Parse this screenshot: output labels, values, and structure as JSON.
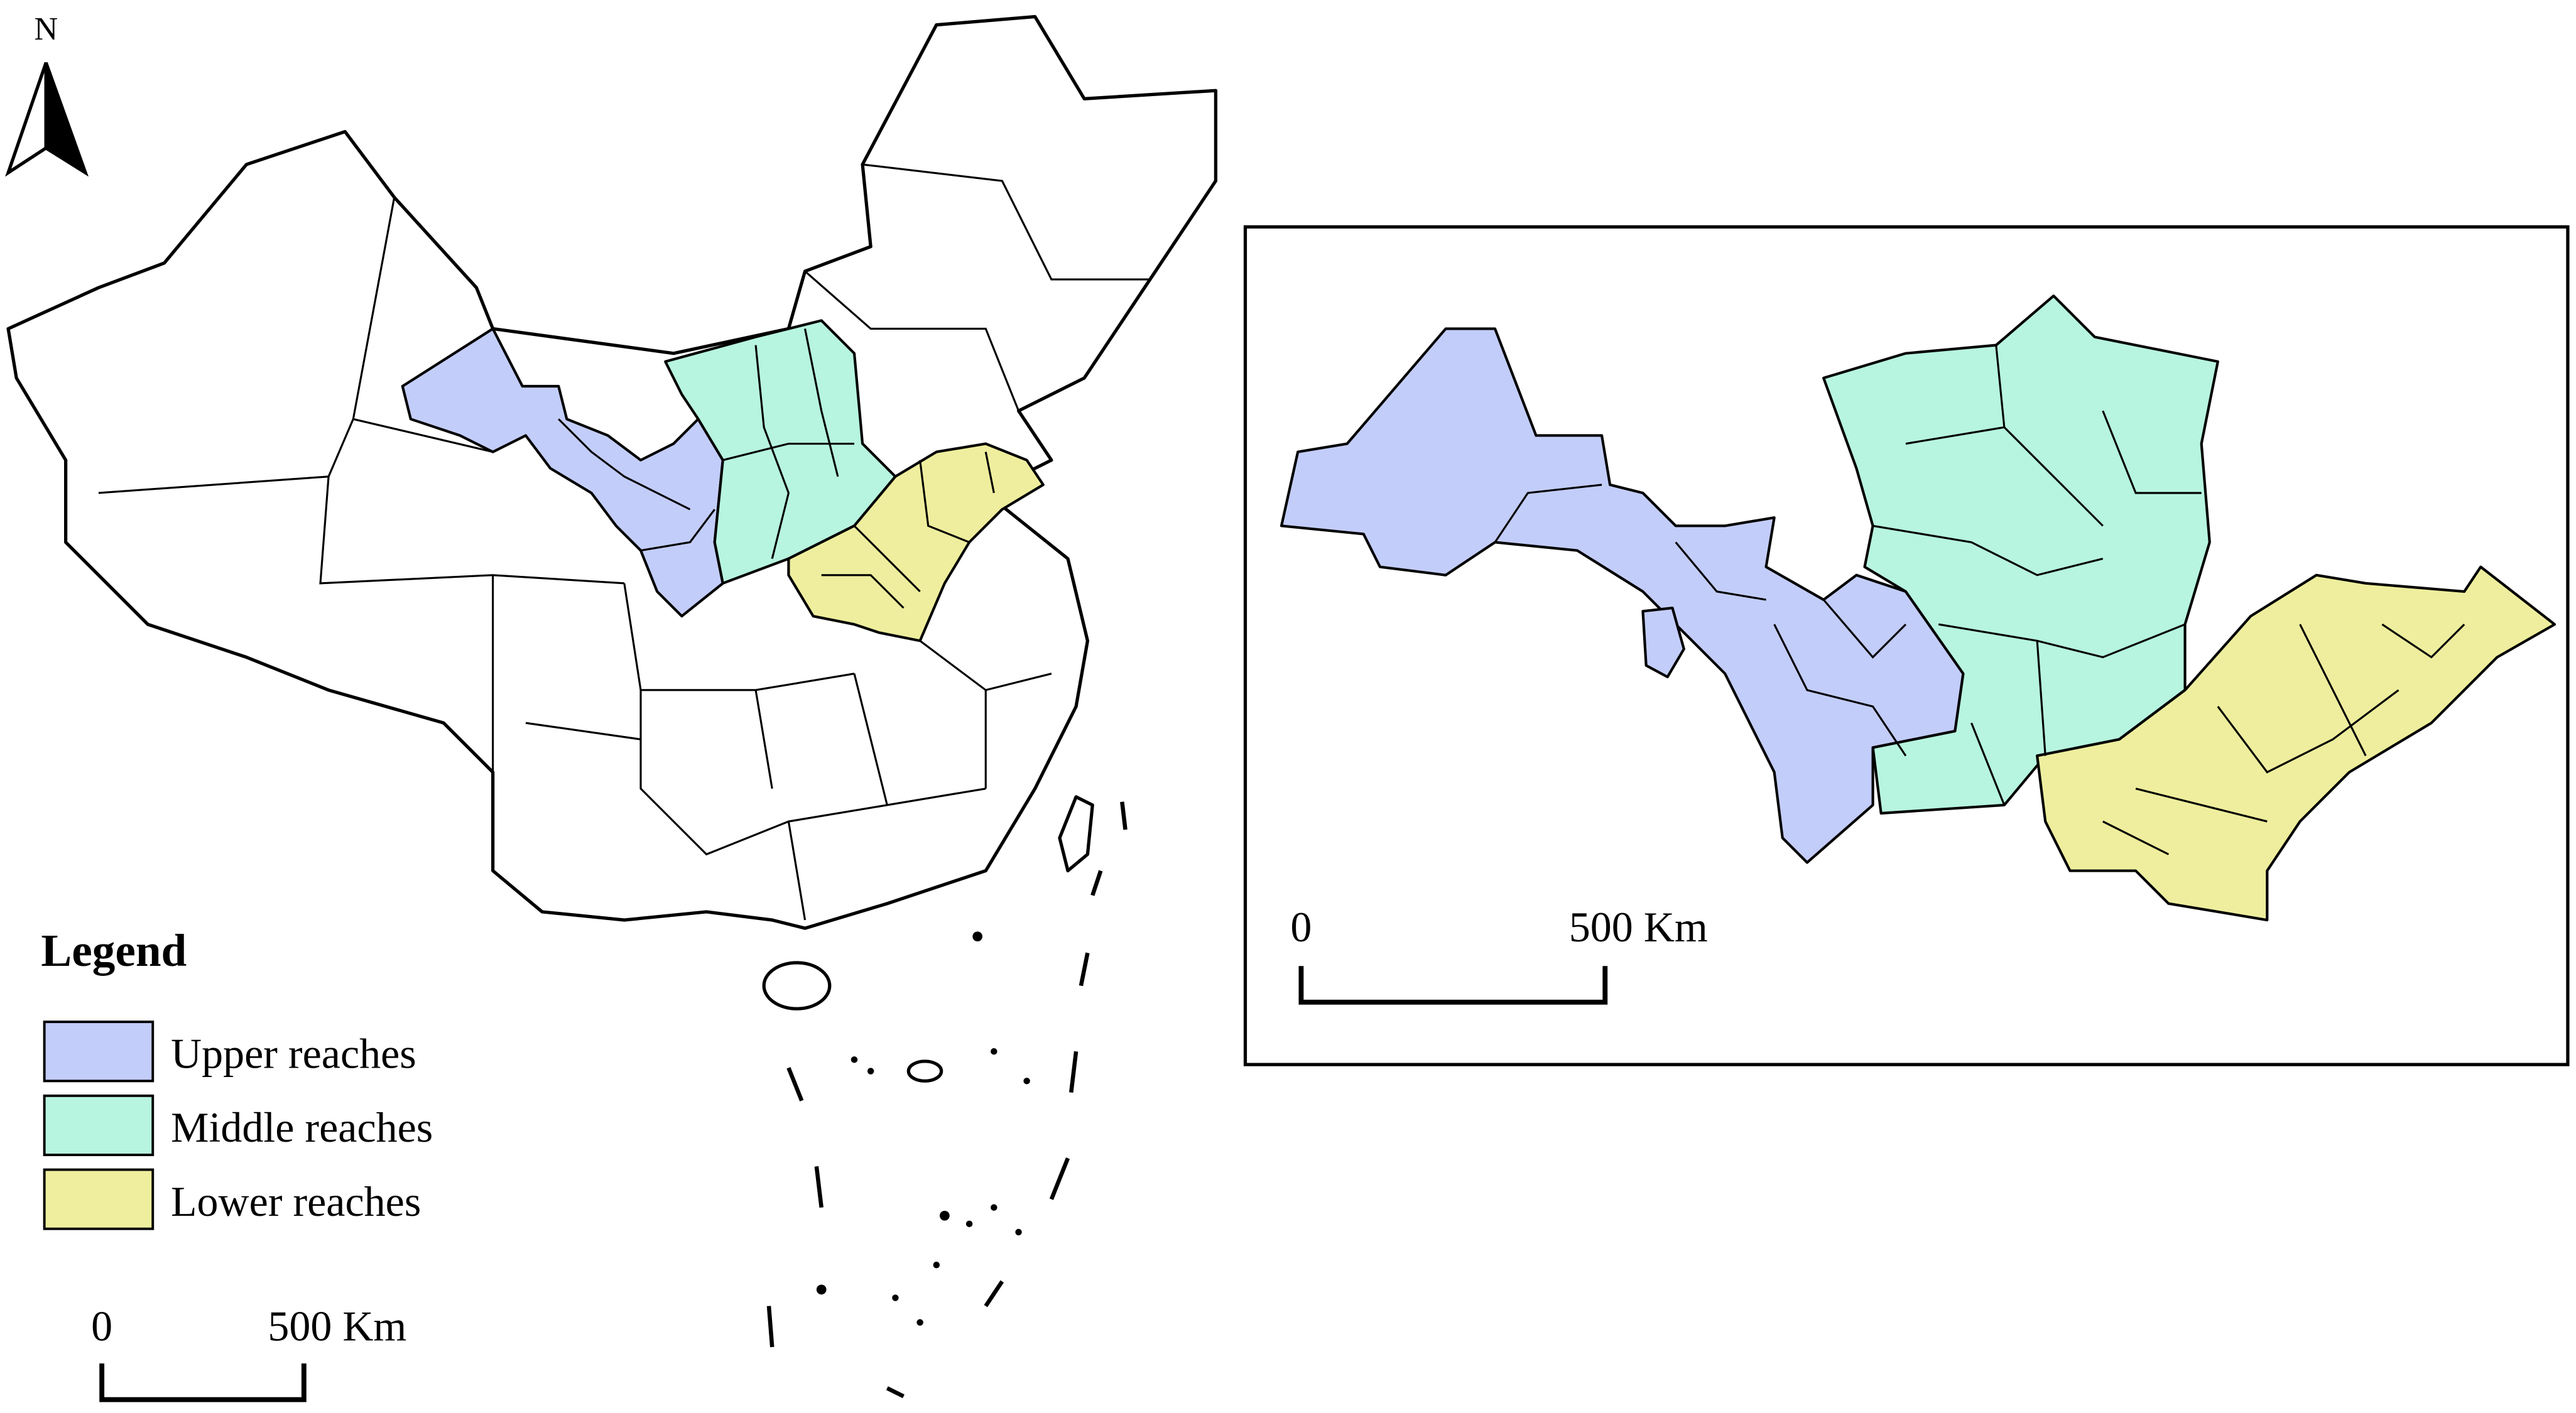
{
  "north_arrow": {
    "label": "N"
  },
  "legend": {
    "title": "Legend",
    "items": [
      {
        "label": "Upper reaches",
        "color": "#c3cdfa"
      },
      {
        "label": "Middle reaches",
        "color": "#b7f5e0"
      },
      {
        "label": "Lower reaches",
        "color": "#eeee9e"
      }
    ]
  },
  "main_map": {
    "scale_bar": {
      "start": "0",
      "end": "500 Km"
    }
  },
  "inset_map": {
    "scale_bar": {
      "start": "0",
      "end": "500 Km"
    }
  }
}
